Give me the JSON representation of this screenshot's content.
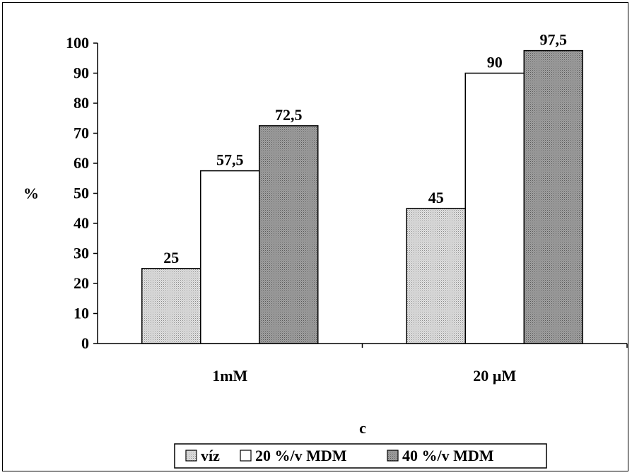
{
  "chart_data": {
    "type": "bar",
    "categories": [
      "1mM",
      "20 µM"
    ],
    "series": [
      {
        "name": "víz",
        "values": [
          25,
          45
        ],
        "fill": "gray-dotted"
      },
      {
        "name": "20 %/v MDM",
        "values": [
          57.5,
          90
        ],
        "fill": "white"
      },
      {
        "name": "40 %/v MDM",
        "values": [
          72.5,
          97.5
        ],
        "fill": "dark-gray-dotted"
      }
    ],
    "data_labels": [
      [
        "25",
        "45"
      ],
      [
        "57,5",
        "90"
      ],
      [
        "72,5",
        "97,5"
      ]
    ],
    "title": "",
    "xlabel": "c",
    "ylabel": "%",
    "ylim": [
      0,
      100
    ],
    "yticks": [
      0,
      10,
      20,
      30,
      40,
      50,
      60,
      70,
      80,
      90,
      100
    ],
    "grid": false,
    "legend": "bottom"
  }
}
